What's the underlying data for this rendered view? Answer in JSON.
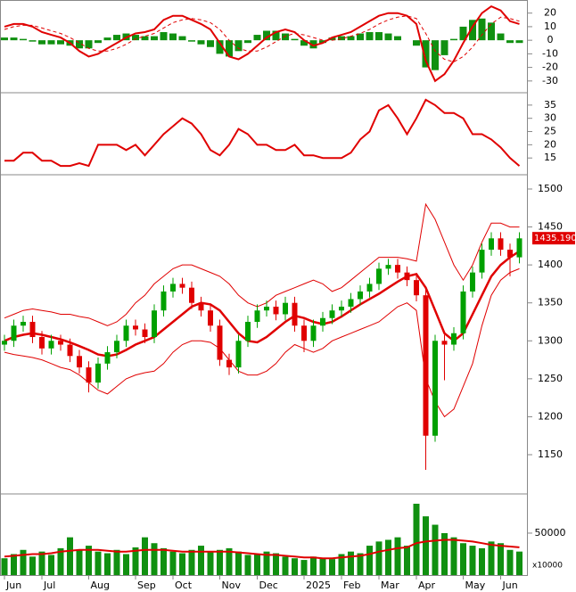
{
  "chart_data": [
    {
      "type": "macd",
      "series": [
        {
          "name": "MACD",
          "color": "#e00000",
          "values": [
            10,
            12,
            12,
            10,
            6,
            4,
            2,
            -2,
            -8,
            -12,
            -10,
            -6,
            -2,
            2,
            5,
            6,
            8,
            15,
            18,
            18,
            15,
            12,
            8,
            -2,
            -12,
            -14,
            -10,
            -4,
            2,
            6,
            8,
            6,
            0,
            -4,
            -2,
            2,
            4,
            6,
            10,
            14,
            18,
            20,
            20,
            18,
            12,
            -15,
            -30,
            -25,
            -15,
            -2,
            10,
            20,
            25,
            22,
            14,
            12
          ]
        },
        {
          "name": "Signal",
          "color": "#e00000",
          "values": [
            8,
            10,
            11,
            11,
            9,
            7,
            5,
            2,
            -2,
            -6,
            -8,
            -8,
            -6,
            -3,
            1,
            3,
            5,
            9,
            13,
            15,
            16,
            15,
            13,
            8,
            0,
            -6,
            -8,
            -8,
            -5,
            -1,
            3,
            5,
            4,
            2,
            0,
            0,
            1,
            3,
            5,
            8,
            12,
            15,
            17,
            18,
            16,
            5,
            -8,
            -14,
            -16,
            -12,
            -5,
            4,
            12,
            17,
            16,
            14
          ]
        },
        {
          "name": "Histogram",
          "color": "#109010",
          "values": [
            2,
            2,
            1,
            -1,
            -3,
            -3,
            -3,
            -4,
            -6,
            -6,
            -2,
            2,
            4,
            5,
            4,
            3,
            3,
            6,
            5,
            3,
            -1,
            -3,
            -5,
            -10,
            -12,
            -8,
            -2,
            4,
            7,
            7,
            5,
            1,
            -4,
            -6,
            -2,
            2,
            3,
            3,
            5,
            6,
            6,
            5,
            3,
            0,
            -4,
            -20,
            -22,
            -11,
            1,
            10,
            15,
            16,
            13,
            5,
            -2,
            -2
          ]
        }
      ],
      "ylim": [
        -38,
        29
      ],
      "yticks": [
        20,
        10,
        0,
        -10,
        -20,
        -30
      ]
    },
    {
      "type": "line",
      "series": [
        {
          "name": "ADX",
          "color": "#e00000",
          "values": [
            14,
            14,
            17,
            17,
            14,
            14,
            12,
            12,
            13,
            12,
            20,
            20,
            20,
            18,
            20,
            16,
            20,
            24,
            27,
            30,
            28,
            24,
            18,
            16,
            20,
            26,
            24,
            20,
            20,
            18,
            18,
            20,
            16,
            16,
            15,
            15,
            15,
            17,
            22,
            25,
            33,
            35,
            30,
            24,
            30,
            37,
            35,
            32,
            32,
            30,
            24,
            24,
            22,
            19,
            15,
            12
          ]
        }
      ],
      "ylim": [
        9,
        39
      ],
      "yticks": [
        35,
        30,
        25,
        20,
        15
      ]
    },
    {
      "type": "candlestick",
      "open": [
        1295,
        1300,
        1320,
        1325,
        1305,
        1290,
        1300,
        1295,
        1280,
        1265,
        1245,
        1270,
        1285,
        1300,
        1320,
        1315,
        1305,
        1340,
        1365,
        1375,
        1370,
        1350,
        1340,
        1320,
        1275,
        1265,
        1300,
        1325,
        1340,
        1345,
        1335,
        1350,
        1320,
        1300,
        1320,
        1330,
        1340,
        1345,
        1355,
        1365,
        1375,
        1395,
        1400,
        1390,
        1380,
        1360,
        1175,
        1300,
        1295,
        1310,
        1365,
        1390,
        1420,
        1435,
        1420,
        1410
      ],
      "high": [
        1308,
        1328,
        1333,
        1333,
        1313,
        1308,
        1308,
        1303,
        1288,
        1273,
        1278,
        1293,
        1308,
        1328,
        1328,
        1323,
        1348,
        1373,
        1383,
        1383,
        1378,
        1358,
        1348,
        1328,
        1283,
        1308,
        1333,
        1348,
        1353,
        1353,
        1358,
        1358,
        1328,
        1328,
        1338,
        1348,
        1353,
        1363,
        1373,
        1383,
        1403,
        1408,
        1408,
        1398,
        1388,
        1368,
        1308,
        1308,
        1318,
        1373,
        1398,
        1428,
        1443,
        1443,
        1428,
        1443
      ],
      "low": [
        1287,
        1292,
        1312,
        1297,
        1282,
        1282,
        1287,
        1272,
        1257,
        1232,
        1237,
        1262,
        1277,
        1292,
        1307,
        1297,
        1297,
        1332,
        1357,
        1362,
        1342,
        1332,
        1312,
        1267,
        1255,
        1257,
        1292,
        1317,
        1332,
        1327,
        1327,
        1312,
        1285,
        1292,
        1312,
        1322,
        1332,
        1337,
        1347,
        1357,
        1367,
        1387,
        1382,
        1372,
        1352,
        1130,
        1167,
        1248,
        1287,
        1302,
        1357,
        1382,
        1412,
        1412,
        1385,
        1402
      ],
      "close": [
        1300,
        1320,
        1325,
        1305,
        1290,
        1300,
        1295,
        1280,
        1265,
        1245,
        1270,
        1285,
        1300,
        1320,
        1315,
        1305,
        1340,
        1365,
        1375,
        1370,
        1350,
        1340,
        1320,
        1275,
        1265,
        1300,
        1325,
        1340,
        1345,
        1335,
        1350,
        1320,
        1300,
        1320,
        1330,
        1340,
        1345,
        1355,
        1365,
        1375,
        1395,
        1400,
        1390,
        1380,
        1360,
        1175,
        1300,
        1295,
        1310,
        1365,
        1390,
        1420,
        1435,
        1420,
        1410,
        1435
      ],
      "up_color": "#00a000",
      "down_color": "#e00000",
      "series": [
        {
          "name": "MA20",
          "color": "#e00000",
          "values": [
            1300,
            1305,
            1308,
            1310,
            1308,
            1305,
            1302,
            1298,
            1293,
            1288,
            1282,
            1280,
            1282,
            1288,
            1295,
            1300,
            1305,
            1315,
            1325,
            1335,
            1345,
            1350,
            1348,
            1340,
            1325,
            1310,
            1300,
            1298,
            1305,
            1315,
            1325,
            1333,
            1330,
            1325,
            1322,
            1325,
            1332,
            1340,
            1348,
            1355,
            1362,
            1370,
            1378,
            1385,
            1388,
            1370,
            1340,
            1310,
            1300,
            1310,
            1335,
            1360,
            1385,
            1400,
            1410,
            1418
          ]
        },
        {
          "name": "Upper band",
          "color": "#e00000",
          "values": [
            1330,
            1335,
            1340,
            1342,
            1340,
            1338,
            1335,
            1335,
            1332,
            1330,
            1325,
            1320,
            1325,
            1335,
            1350,
            1360,
            1375,
            1385,
            1395,
            1400,
            1400,
            1395,
            1390,
            1385,
            1375,
            1360,
            1350,
            1345,
            1350,
            1360,
            1365,
            1370,
            1375,
            1380,
            1375,
            1365,
            1370,
            1380,
            1390,
            1400,
            1410,
            1410,
            1410,
            1408,
            1405,
            1480,
            1460,
            1430,
            1400,
            1380,
            1400,
            1430,
            1455,
            1455,
            1450,
            1450
          ]
        },
        {
          "name": "Lower band",
          "color": "#e00000",
          "values": [
            1285,
            1282,
            1280,
            1278,
            1275,
            1270,
            1265,
            1262,
            1255,
            1245,
            1235,
            1230,
            1240,
            1250,
            1255,
            1258,
            1260,
            1270,
            1285,
            1295,
            1300,
            1300,
            1298,
            1290,
            1275,
            1260,
            1255,
            1255,
            1260,
            1270,
            1285,
            1295,
            1290,
            1285,
            1290,
            1300,
            1305,
            1310,
            1315,
            1320,
            1325,
            1335,
            1345,
            1350,
            1340,
            1250,
            1220,
            1200,
            1210,
            1240,
            1270,
            1320,
            1360,
            1380,
            1390,
            1395
          ]
        }
      ],
      "last_price": {
        "value": 1435.19,
        "label": "1435.190"
      },
      "ylim": [
        1099.5,
        1517.6
      ],
      "yticks": [
        1500,
        1450,
        1400,
        1350,
        1300,
        1250,
        1200,
        1150
      ]
    },
    {
      "type": "bar",
      "categories": [
        "Jun",
        null,
        null,
        null,
        "Jul",
        null,
        null,
        null,
        null,
        "Aug",
        null,
        null,
        null,
        null,
        "Sep",
        null,
        null,
        null,
        "Oct",
        null,
        null,
        null,
        null,
        "Nov",
        null,
        null,
        null,
        "Dec",
        null,
        null,
        null,
        null,
        "2025",
        null,
        null,
        null,
        "Feb",
        null,
        null,
        null,
        "Mar",
        null,
        null,
        null,
        "Apr",
        null,
        null,
        null,
        null,
        "May",
        null,
        null,
        null,
        "Jun",
        null,
        null
      ],
      "values": [
        20000,
        25000,
        30000,
        22000,
        28000,
        24000,
        32000,
        45000,
        30000,
        35000,
        28000,
        26000,
        30000,
        25000,
        33000,
        45000,
        38000,
        32000,
        28000,
        26000,
        30000,
        35000,
        28000,
        30000,
        32000,
        28000,
        24000,
        25000,
        28000,
        26000,
        22000,
        20000,
        18000,
        22000,
        20000,
        19000,
        25000,
        28000,
        26000,
        35000,
        40000,
        42000,
        45000,
        35000,
        85000,
        70000,
        60000,
        50000,
        45000,
        38000,
        35000,
        32000,
        40000,
        38000,
        30000,
        28000
      ],
      "color": "#109010",
      "series": [
        {
          "name": "Volume MA",
          "color": "#e00000",
          "values": [
            22000,
            23000,
            24000,
            25000,
            25000,
            26000,
            28000,
            29000,
            30000,
            30000,
            30000,
            29000,
            28000,
            28000,
            29000,
            30000,
            30000,
            30000,
            29000,
            28000,
            28000,
            28000,
            28000,
            28000,
            28000,
            27000,
            26000,
            25000,
            24000,
            24000,
            23000,
            22000,
            21000,
            21000,
            20000,
            20000,
            21000,
            22000,
            23000,
            25000,
            28000,
            30000,
            32000,
            33000,
            38000,
            40000,
            41000,
            42000,
            42000,
            41000,
            40000,
            38000,
            36000,
            35000,
            34000,
            33000
          ]
        }
      ],
      "unit_note": "x10000",
      "ylim": [
        0,
        95650
      ],
      "yticks": [
        50000
      ]
    }
  ]
}
